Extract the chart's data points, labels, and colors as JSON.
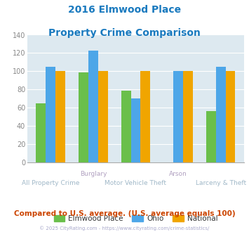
{
  "title_line1": "2016 Elmwood Place",
  "title_line2": "Property Crime Comparison",
  "title_color": "#1a7abf",
  "categories": [
    "All Property Crime",
    "Burglary",
    "Motor Vehicle Theft",
    "Arson",
    "Larceny & Theft"
  ],
  "series": {
    "Elmwood Place": [
      65,
      99,
      79,
      0,
      56
    ],
    "Ohio": [
      105,
      123,
      70,
      100,
      105
    ],
    "National": [
      100,
      100,
      100,
      100,
      100
    ]
  },
  "colors": {
    "Elmwood Place": "#6abf4b",
    "Ohio": "#4da6e8",
    "National": "#f0a500"
  },
  "ylim": [
    0,
    140
  ],
  "yticks": [
    0,
    20,
    40,
    60,
    80,
    100,
    120,
    140
  ],
  "plot_bg_color": "#dde9f0",
  "grid_color": "#ffffff",
  "xlabel_color_top": "#b0a0c0",
  "xlabel_color_bot": "#a0b8c8",
  "footer_text": "Compared to U.S. average. (U.S. average equals 100)",
  "footer_color": "#cc4400",
  "copyright_text": "© 2025 CityRating.com - https://www.cityrating.com/crime-statistics/",
  "copyright_color": "#aaaacc",
  "legend_labels": [
    "Elmwood Place",
    "Ohio",
    "National"
  ]
}
